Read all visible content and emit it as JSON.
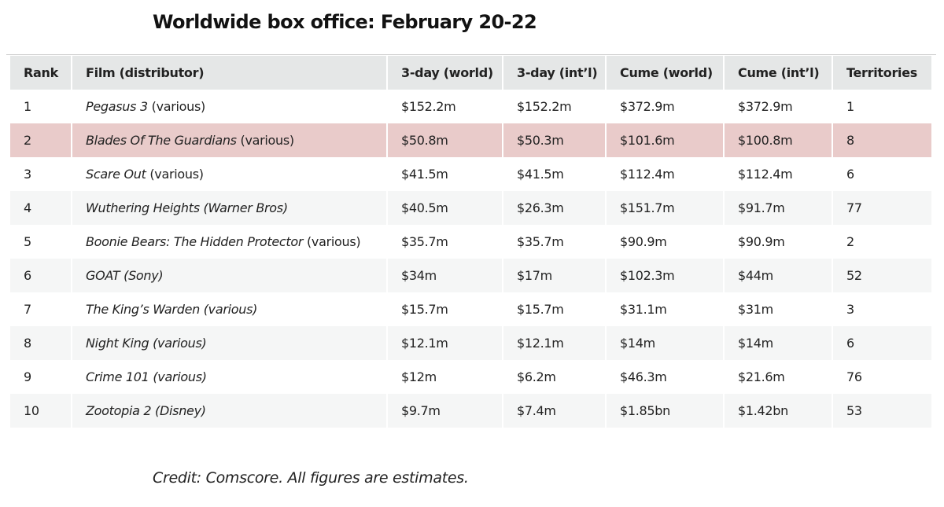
{
  "title": "Worldwide box office: February 20-22",
  "headers": {
    "rank": "Rank",
    "film": "Film (distributor)",
    "three_day_world": "3-day (world)",
    "three_day_intl": "3-day (int’l)",
    "cume_world": "Cume (world)",
    "cume_intl": "Cume (int’l)",
    "territories": "Territories"
  },
  "rows": [
    {
      "rank": "1",
      "title": "Pegasus 3",
      "distributor": " (various)",
      "three_day_world": "$152.2m",
      "three_day_intl": "$152.2m",
      "cume_world": "$372.9m",
      "cume_intl": "$372.9m",
      "territories": "1"
    },
    {
      "rank": "2",
      "title": "Blades Of The Guardians",
      "distributor": " (various)",
      "three_day_world": "$50.8m",
      "three_day_intl": "$50.3m",
      "cume_world": "$101.6m",
      "cume_intl": "$100.8m",
      "territories": "8"
    },
    {
      "rank": "3",
      "title": "Scare Out",
      "distributor": " (various)",
      "three_day_world": "$41.5m",
      "three_day_intl": "$41.5m",
      "cume_world": "$112.4m",
      "cume_intl": "$112.4m",
      "territories": "6"
    },
    {
      "rank": "4",
      "title": "Wuthering Heights (Warner Bros)",
      "distributor": "",
      "three_day_world": "$40.5m",
      "three_day_intl": "$26.3m",
      "cume_world": "$151.7m",
      "cume_intl": "$91.7m",
      "territories": "77"
    },
    {
      "rank": "5",
      "title": "Boonie Bears: The Hidden Protector",
      "distributor": " (various)",
      "three_day_world": "$35.7m",
      "three_day_intl": "$35.7m",
      "cume_world": "$90.9m",
      "cume_intl": "$90.9m",
      "territories": "2"
    },
    {
      "rank": "6",
      "title": "GOAT (Sony)",
      "distributor": "",
      "three_day_world": "$34m",
      "three_day_intl": "$17m",
      "cume_world": "$102.3m",
      "cume_intl": "$44m",
      "territories": "52"
    },
    {
      "rank": "7",
      "title": "The King’s Warden (various)",
      "distributor": "",
      "three_day_world": "$15.7m",
      "three_day_intl": "$15.7m",
      "cume_world": "$31.1m",
      "cume_intl": "$31m",
      "territories": "3"
    },
    {
      "rank": "8",
      "title": "Night King (various)",
      "distributor": "",
      "three_day_world": "$12.1m",
      "three_day_intl": "$12.1m",
      "cume_world": "$14m",
      "cume_intl": "$14m",
      "territories": "6"
    },
    {
      "rank": "9",
      "title": "Crime 101 (various)",
      "distributor": "",
      "three_day_world": "$12m",
      "three_day_intl": "$6.2m",
      "cume_world": "$46.3m",
      "cume_intl": "$21.6m",
      "territories": "76"
    },
    {
      "rank": "10",
      "title": "Zootopia 2 (Disney)",
      "distributor": "",
      "three_day_world": "$9.7m",
      "three_day_intl": "$7.4m",
      "cume_world": "$1.85bn",
      "cume_intl": "$1.42bn",
      "territories": "53"
    }
  ],
  "credit": "Credit: Comscore. All figures are estimates.",
  "colors": {
    "header_bg": "#e5e7e7",
    "highlight_row": "#e9cbca",
    "stripe_row": "#f5f6f6"
  }
}
